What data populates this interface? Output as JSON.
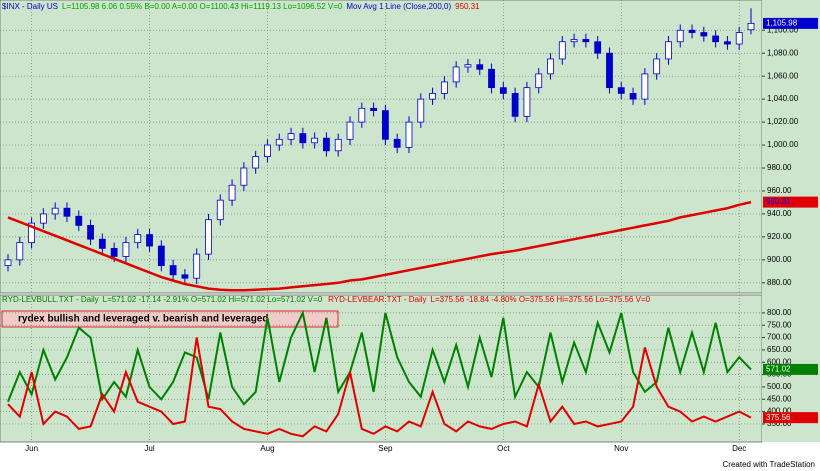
{
  "chart_data": [
    {
      "type": "candlestick",
      "title": "$INX - Daily US",
      "subtitle": "L=1105.98 6.06 0.55% B=0.00 A=0.00 O=1100.43 Hi=1119.13 Lo=1096.52 V=0",
      "color": "#0000cc",
      "last_label": "1,105.98",
      "open": [
        895,
        900,
        915,
        932,
        940,
        945,
        938,
        930,
        918,
        910,
        903,
        915,
        922,
        912,
        895,
        887,
        884,
        905,
        935,
        952,
        965,
        980,
        990,
        1000,
        1005,
        1010,
        1002,
        1006,
        995,
        1005,
        1020,
        1032,
        1030,
        1005,
        998,
        1020,
        1040,
        1045,
        1055,
        1068,
        1070,
        1066,
        1050,
        1045,
        1025,
        1050,
        1062,
        1075,
        1090,
        1092,
        1090,
        1080,
        1050,
        1045,
        1040,
        1062,
        1075,
        1090,
        1100,
        1098,
        1095,
        1090,
        1088,
        1100.43
      ],
      "high": [
        905,
        920,
        937,
        945,
        950,
        950,
        943,
        935,
        923,
        915,
        920,
        927,
        927,
        917,
        900,
        892,
        910,
        940,
        957,
        970,
        985,
        995,
        1005,
        1010,
        1015,
        1015,
        1011,
        1011,
        1010,
        1025,
        1037,
        1037,
        1035,
        1010,
        1025,
        1045,
        1050,
        1060,
        1073,
        1075,
        1075,
        1071,
        1055,
        1050,
        1055,
        1067,
        1080,
        1095,
        1097,
        1097,
        1095,
        1085,
        1055,
        1050,
        1067,
        1080,
        1095,
        1105,
        1105,
        1103,
        1100,
        1095,
        1103,
        1119.13
      ],
      "low": [
        890,
        895,
        910,
        927,
        935,
        933,
        925,
        913,
        905,
        898,
        898,
        910,
        907,
        890,
        882,
        879,
        879,
        900,
        930,
        947,
        960,
        975,
        985,
        995,
        1000,
        997,
        997,
        990,
        990,
        1000,
        1015,
        1025,
        1000,
        993,
        993,
        1015,
        1035,
        1040,
        1050,
        1063,
        1061,
        1045,
        1040,
        1020,
        1020,
        1045,
        1057,
        1070,
        1085,
        1085,
        1075,
        1045,
        1040,
        1035,
        1035,
        1057,
        1070,
        1085,
        1093,
        1090,
        1085,
        1083,
        1083,
        1096.52
      ],
      "close": [
        900,
        915,
        932,
        940,
        945,
        938,
        930,
        918,
        910,
        903,
        915,
        922,
        912,
        895,
        887,
        884,
        905,
        935,
        952,
        965,
        980,
        990,
        1000,
        1005,
        1010,
        1002,
        1006,
        995,
        1005,
        1020,
        1032,
        1030,
        1005,
        998,
        1020,
        1040,
        1045,
        1055,
        1068,
        1070,
        1066,
        1050,
        1045,
        1025,
        1050,
        1062,
        1075,
        1090,
        1092,
        1090,
        1080,
        1050,
        1045,
        1040,
        1062,
        1075,
        1090,
        1100,
        1098,
        1095,
        1090,
        1088,
        1098,
        1105.98
      ],
      "overlay": {
        "name": "Mov Avg 1 Line (Close,200,0)",
        "color": "#e00000",
        "last_label": "950.31",
        "values": [
          937,
          933,
          929,
          925,
          921,
          917,
          913,
          909,
          905,
          901,
          897,
          893,
          889,
          885,
          882,
          879,
          877,
          875,
          874,
          873.5,
          873.5,
          874,
          874.5,
          875,
          876,
          877,
          878,
          879,
          880,
          882,
          883,
          885,
          887,
          889,
          891,
          893,
          895,
          897,
          899,
          901,
          903,
          905,
          906.5,
          908,
          910,
          912,
          914,
          916,
          918,
          920,
          922,
          924,
          926,
          928,
          930,
          932,
          934,
          937,
          939,
          941,
          943,
          945,
          948,
          950.31
        ]
      },
      "ylim": [
        872,
        1122
      ],
      "yticks": [
        {
          "value": 880,
          "label": "880.00"
        },
        {
          "value": 900,
          "label": "900.00"
        },
        {
          "value": 920,
          "label": "920.00"
        },
        {
          "value": 940,
          "label": "940.00"
        },
        {
          "value": 960,
          "label": "960.00"
        },
        {
          "value": 980,
          "label": "980.00"
        },
        {
          "value": 1000,
          "label": "1,000.00"
        },
        {
          "value": 1020,
          "label": "1,020.00"
        },
        {
          "value": 1040,
          "label": "1,040.00"
        },
        {
          "value": 1060,
          "label": "1,060.00"
        },
        {
          "value": 1080,
          "label": "1,080.00"
        },
        {
          "value": 1100,
          "label": "1,100.00"
        }
      ],
      "grid": true
    },
    {
      "type": "line",
      "annotation": "rydex bullish and leveraged v. bearish and leveraged",
      "categories": [
        null,
        null,
        "Jun",
        null,
        null,
        null,
        null,
        null,
        null,
        null,
        null,
        null,
        "Jul",
        null,
        null,
        null,
        null,
        null,
        null,
        null,
        null,
        null,
        "Aug",
        null,
        null,
        null,
        null,
        null,
        null,
        null,
        null,
        null,
        "Sep",
        null,
        null,
        null,
        null,
        null,
        null,
        null,
        null,
        null,
        "Oct",
        null,
        null,
        null,
        null,
        null,
        null,
        null,
        null,
        null,
        "Nov",
        null,
        null,
        null,
        null,
        null,
        null,
        null,
        null,
        null,
        "Dec",
        null
      ],
      "series": [
        {
          "name": "RYD-LEVBULL.TXT - Daily",
          "info": "L=571.02 -17.14 -2.91% O=571.02 Hi=571.02 Lo=571.02 V=0",
          "color": "#008000",
          "last_label": "571.02",
          "values": [
            440,
            560,
            470,
            650,
            530,
            620,
            740,
            700,
            450,
            520,
            460,
            650,
            500,
            450,
            520,
            640,
            620,
            450,
            720,
            500,
            430,
            480,
            780,
            520,
            700,
            800,
            560,
            780,
            480,
            560,
            720,
            480,
            800,
            620,
            520,
            460,
            650,
            520,
            670,
            500,
            700,
            540,
            780,
            460,
            560,
            500,
            720,
            520,
            680,
            560,
            760,
            640,
            800,
            560,
            480,
            520,
            740,
            560,
            720,
            560,
            760,
            560,
            620,
            571.02
          ]
        },
        {
          "name": "RYD-LEVBEAR.TXT - Daily",
          "info": "L=375.56 -18.84 -4.80% O=375.56 Hi=375.56 Lo=375.56 V=0",
          "color": "#e00000",
          "last_label": "375.56",
          "values": [
            430,
            380,
            560,
            350,
            400,
            380,
            330,
            340,
            470,
            400,
            560,
            440,
            420,
            400,
            350,
            360,
            700,
            420,
            410,
            360,
            330,
            320,
            310,
            330,
            310,
            300,
            340,
            320,
            390,
            560,
            330,
            310,
            340,
            320,
            360,
            340,
            480,
            350,
            320,
            360,
            340,
            330,
            350,
            360,
            340,
            510,
            360,
            420,
            350,
            360,
            340,
            350,
            360,
            420,
            660,
            500,
            420,
            400,
            360,
            380,
            360,
            380,
            400,
            375.56
          ]
        }
      ],
      "ylim": [
        285,
        832
      ],
      "yticks": [
        {
          "value": 350,
          "label": "350.00"
        },
        {
          "value": 400,
          "label": "400.00"
        },
        {
          "value": 450,
          "label": "450.00"
        },
        {
          "value": 500,
          "label": "500.00"
        },
        {
          "value": 550,
          "label": "550.00"
        },
        {
          "value": 600,
          "label": "600.00"
        },
        {
          "value": 650,
          "label": "650.00"
        },
        {
          "value": 700,
          "label": "700.00"
        },
        {
          "value": 750,
          "label": "750.00"
        },
        {
          "value": 800,
          "label": "800.00"
        }
      ],
      "grid": true
    }
  ],
  "footer": "Created with TradeStation"
}
